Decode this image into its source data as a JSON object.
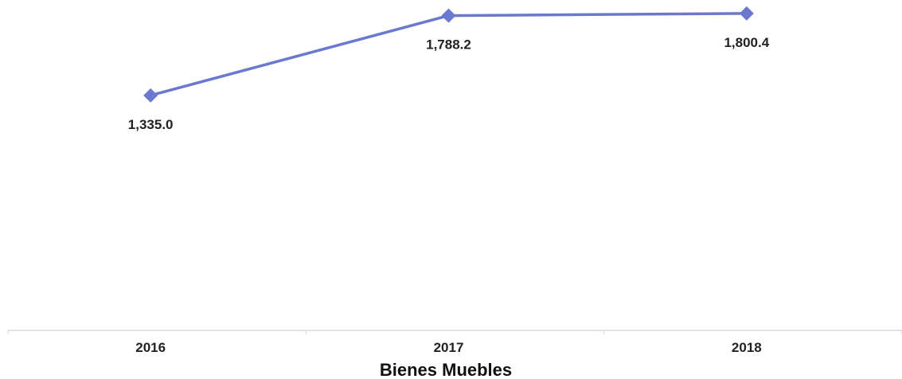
{
  "chart_data": {
    "type": "line",
    "title": "",
    "xlabel": "Bienes Muebles",
    "ylabel": "",
    "categories": [
      "2016",
      "2017",
      "2018"
    ],
    "series": [
      {
        "values": [
          1335.0,
          1788.2,
          1800.4
        ],
        "labels": [
          "1,335.0",
          "1,788.2",
          "1,800.4"
        ],
        "color": "#6a78cf",
        "marker": "diamond"
      }
    ],
    "ylim": [
      0,
      1800
    ],
    "grid": false,
    "legend": "none"
  }
}
